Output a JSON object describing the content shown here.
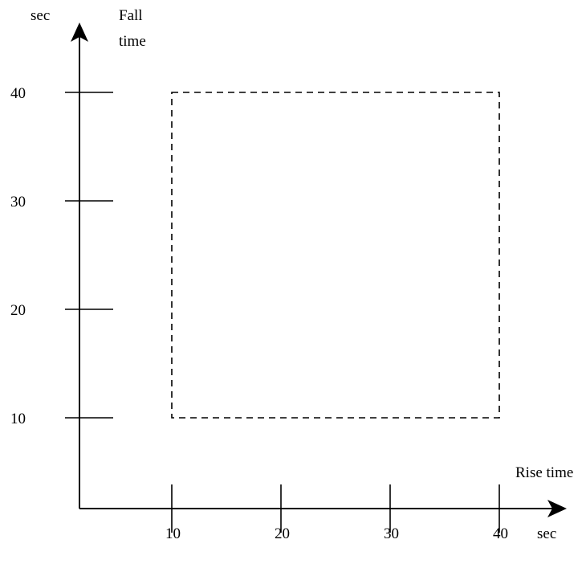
{
  "chart_data": {
    "type": "scatter",
    "x_label": "Rise time",
    "y_label": "Fall time",
    "x_unit": "sec",
    "y_unit": "sec",
    "x_ticks": [
      10,
      20,
      30,
      40
    ],
    "y_ticks": [
      10,
      20,
      30,
      40
    ],
    "xlim": [
      1.5,
      44
    ],
    "ylim": [
      1.5,
      44
    ],
    "region": {
      "style": "dashed",
      "x": [
        10,
        40
      ],
      "y": [
        10,
        40
      ]
    },
    "grid": false,
    "legend": "none"
  }
}
